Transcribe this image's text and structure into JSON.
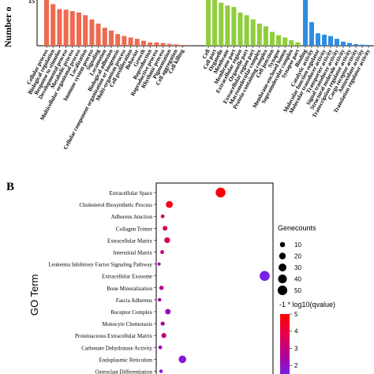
{
  "panel_b_label": "B",
  "colors": {
    "bp": "#ee6a50",
    "cc": "#8fce3c",
    "mf": "#2e8de2",
    "dot_high": "#ff0000",
    "dot_low": "#8a2be2"
  },
  "chart_data": [
    {
      "type": "bar",
      "panel": "A",
      "ylabel": "Number o",
      "ytick_labels": [
        "15"
      ],
      "groups": [
        {
          "name": "Biological process",
          "color": "#ee6a50",
          "categories": [
            "Cellular process",
            "Biological regulation",
            "Response to stimulus",
            "Developmental process",
            "Metabolic process",
            "Multicellular organismal process",
            "Localization",
            "Immune system process",
            "Signaling",
            "Locomotion",
            "Biological adhesion",
            "Cellular component organization or biogenesis",
            "Multi-organism process",
            "Cell proliferation",
            "Behavior",
            "Growth",
            "Reproduction",
            "Reproductive process",
            "Rhythmic process",
            "Pigmentation",
            "Cell aggregation",
            "Cell killing"
          ],
          "values": [
            165,
            150,
            132,
            130,
            125,
            120,
            110,
            95,
            80,
            65,
            55,
            42,
            35,
            30,
            25,
            18,
            12,
            12,
            10,
            7,
            5,
            3
          ]
        },
        {
          "name": "Cellular component",
          "color": "#8fce3c",
          "categories": [
            "Cell",
            "Cell part",
            "Organelle",
            "Membrane",
            "Membrane part",
            "Extracellular region",
            "Organelle part",
            "Extracellular region part",
            "Macromolecular complex",
            "Protein-containing complex",
            "Cell junction",
            "Synapse",
            "Membrane-enclosed lumen",
            "Supramolecular complex",
            "Synapse part"
          ],
          "values": [
            165,
            165,
            155,
            145,
            140,
            120,
            110,
            95,
            80,
            70,
            50,
            38,
            30,
            20,
            12
          ]
        },
        {
          "name": "Molecular function",
          "color": "#2e8de2",
          "categories": [
            "Binding",
            "Catalytic activity",
            "Molecular function regulator",
            "Molecular transducer activity",
            "Transporter activity",
            "Signal transducer activity",
            "Structural molecule activity",
            "Transcription regulator activity",
            "Cargo receptor activity",
            "Antioxidant activity",
            "Translation regulator activity"
          ],
          "values": [
            165,
            85,
            45,
            40,
            35,
            25,
            15,
            10,
            6,
            4,
            3
          ]
        }
      ]
    },
    {
      "type": "scatter",
      "panel": "B",
      "ylabel": "GO Term",
      "terms": [
        "Extracellular Space",
        "Cholesterol Biosynthetic Process",
        "Adherens Junction",
        "Collagen Trimer",
        "Extracellular Matrix",
        "Interstitial Matrix",
        "Leukemia Inhibitory Factor Signaling Pathway",
        "Extracellular Exosome",
        "Bone Mineralization",
        "Fascia Adherens",
        "Receptor Complex",
        "Monocyte Chemotaxis",
        "Proteinaceous Extracellular Matrix",
        "Carbonate Dehydratase Activity",
        "Endoplasmic Reticulum",
        "Osteoclast Differentiation"
      ],
      "x": [
        0.27,
        0.055,
        0.027,
        0.037,
        0.046,
        0.025,
        0.012,
        0.455,
        0.022,
        0.014,
        0.049,
        0.027,
        0.032,
        0.017,
        0.11,
        0.02
      ],
      "genecounts": [
        52,
        22,
        4,
        8,
        14,
        4,
        2,
        55,
        6,
        3,
        12,
        5,
        9,
        4,
        28,
        3
      ],
      "qvalue_log": [
        4.9,
        4.7,
        3.6,
        3.8,
        3.7,
        3.2,
        2.5,
        1.5,
        3.0,
        2.4,
        2.2,
        2.6,
        3.1,
        2.3,
        1.8,
        2.0
      ],
      "legend_size": {
        "title": "Genecounts",
        "values": [
          10,
          20,
          30,
          40,
          50
        ]
      },
      "legend_color": {
        "title": "-1 * log10(qvalue)",
        "ticks": [
          5,
          4,
          3,
          2
        ],
        "range": [
          1.5,
          5
        ]
      }
    }
  ]
}
